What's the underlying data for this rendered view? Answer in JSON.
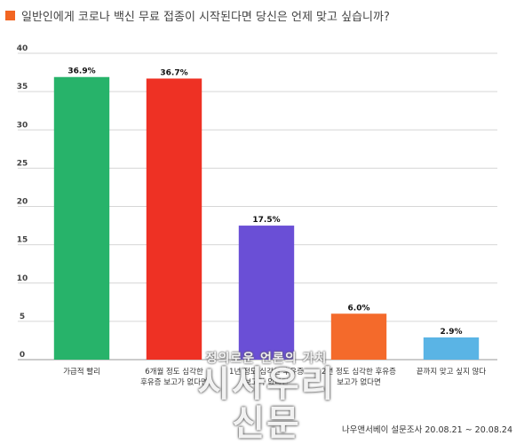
{
  "header": {
    "title": "일반인에게 코로나 백신 무료 접종이 시작된다면 당신은 언제 맞고 싶습니까?",
    "marker_color": "#f26522"
  },
  "chart_data": {
    "type": "bar",
    "categories": [
      [
        "가급적 빨리"
      ],
      [
        "6개월 정도 심각한",
        "후유증 보고가 없다면"
      ],
      [
        "1년 정도 심각한 후유증",
        "보고가 없다면"
      ],
      [
        "2년 정도 심각한 후유증",
        "보고가 없다면"
      ],
      [
        "끝까지 맞고 싶지 않다"
      ]
    ],
    "values": [
      36.9,
      36.7,
      17.5,
      6.0,
      2.9
    ],
    "value_labels": [
      "36.9%",
      "36.7%",
      "17.5%",
      "6.0%",
      "2.9%"
    ],
    "colors": [
      "#27b36a",
      "#ee3124",
      "#6a4fd6",
      "#f46a2b",
      "#5ab4e5"
    ],
    "yticks": [
      0,
      5,
      10,
      15,
      20,
      25,
      30,
      35,
      40
    ],
    "ylim": [
      0,
      40
    ],
    "grid": true
  },
  "watermark": {
    "tagline": "정의로운 언론의 가치",
    "brand": "시사우리신문"
  },
  "footer": {
    "source": "나우앤서베이 설문조사 20.08.21 ~ 20.08.24"
  }
}
